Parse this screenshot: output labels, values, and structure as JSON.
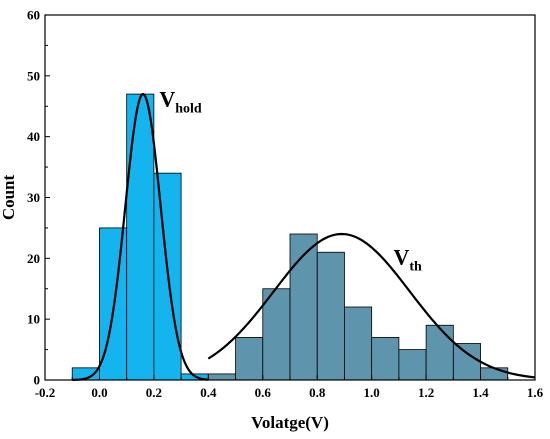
{
  "chart_data": {
    "type": "bar",
    "xlabel": "Volatge(V)",
    "ylabel": "Count",
    "xlim": [
      -0.2,
      1.6
    ],
    "ylim": [
      0,
      60
    ],
    "xticks": [
      "-0.2",
      "0.0",
      "0.2",
      "0.4",
      "0.6",
      "0.8",
      "1.0",
      "1.2",
      "1.4",
      "1.6"
    ],
    "yticks": [
      "0",
      "10",
      "20",
      "30",
      "40",
      "50",
      "60"
    ],
    "bin_width": 0.1,
    "series": [
      {
        "color": "#14b4ee",
        "bins": [
          {
            "x": -0.1,
            "count": 2
          },
          {
            "x": 0.0,
            "count": 25
          },
          {
            "x": 0.1,
            "count": 47
          },
          {
            "x": 0.2,
            "count": 34
          },
          {
            "x": 0.3,
            "count": 1
          }
        ],
        "fit": {
          "mean": 0.16,
          "sigma": 0.065,
          "peak": 47,
          "x_range": [
            -0.1,
            0.4
          ]
        }
      },
      {
        "color": "#5e95ac",
        "bins": [
          {
            "x": 0.4,
            "count": 1
          },
          {
            "x": 0.5,
            "count": 7
          },
          {
            "x": 0.6,
            "count": 15
          },
          {
            "x": 0.7,
            "count": 24
          },
          {
            "x": 0.8,
            "count": 21
          },
          {
            "x": 0.9,
            "count": 12
          },
          {
            "x": 1.0,
            "count": 7
          },
          {
            "x": 1.1,
            "count": 5
          },
          {
            "x": 1.2,
            "count": 9
          },
          {
            "x": 1.3,
            "count": 6
          },
          {
            "x": 1.4,
            "count": 2
          }
        ],
        "fit": {
          "mean": 0.89,
          "sigma": 0.25,
          "peak": 24,
          "x_range": [
            0.4,
            1.6
          ]
        }
      }
    ],
    "annotations": [
      {
        "main": "V",
        "sub": "hold",
        "x": 0.22,
        "y": 45
      },
      {
        "main": "V",
        "sub": "th",
        "x": 1.08,
        "y": 19
      }
    ],
    "grid": false
  }
}
